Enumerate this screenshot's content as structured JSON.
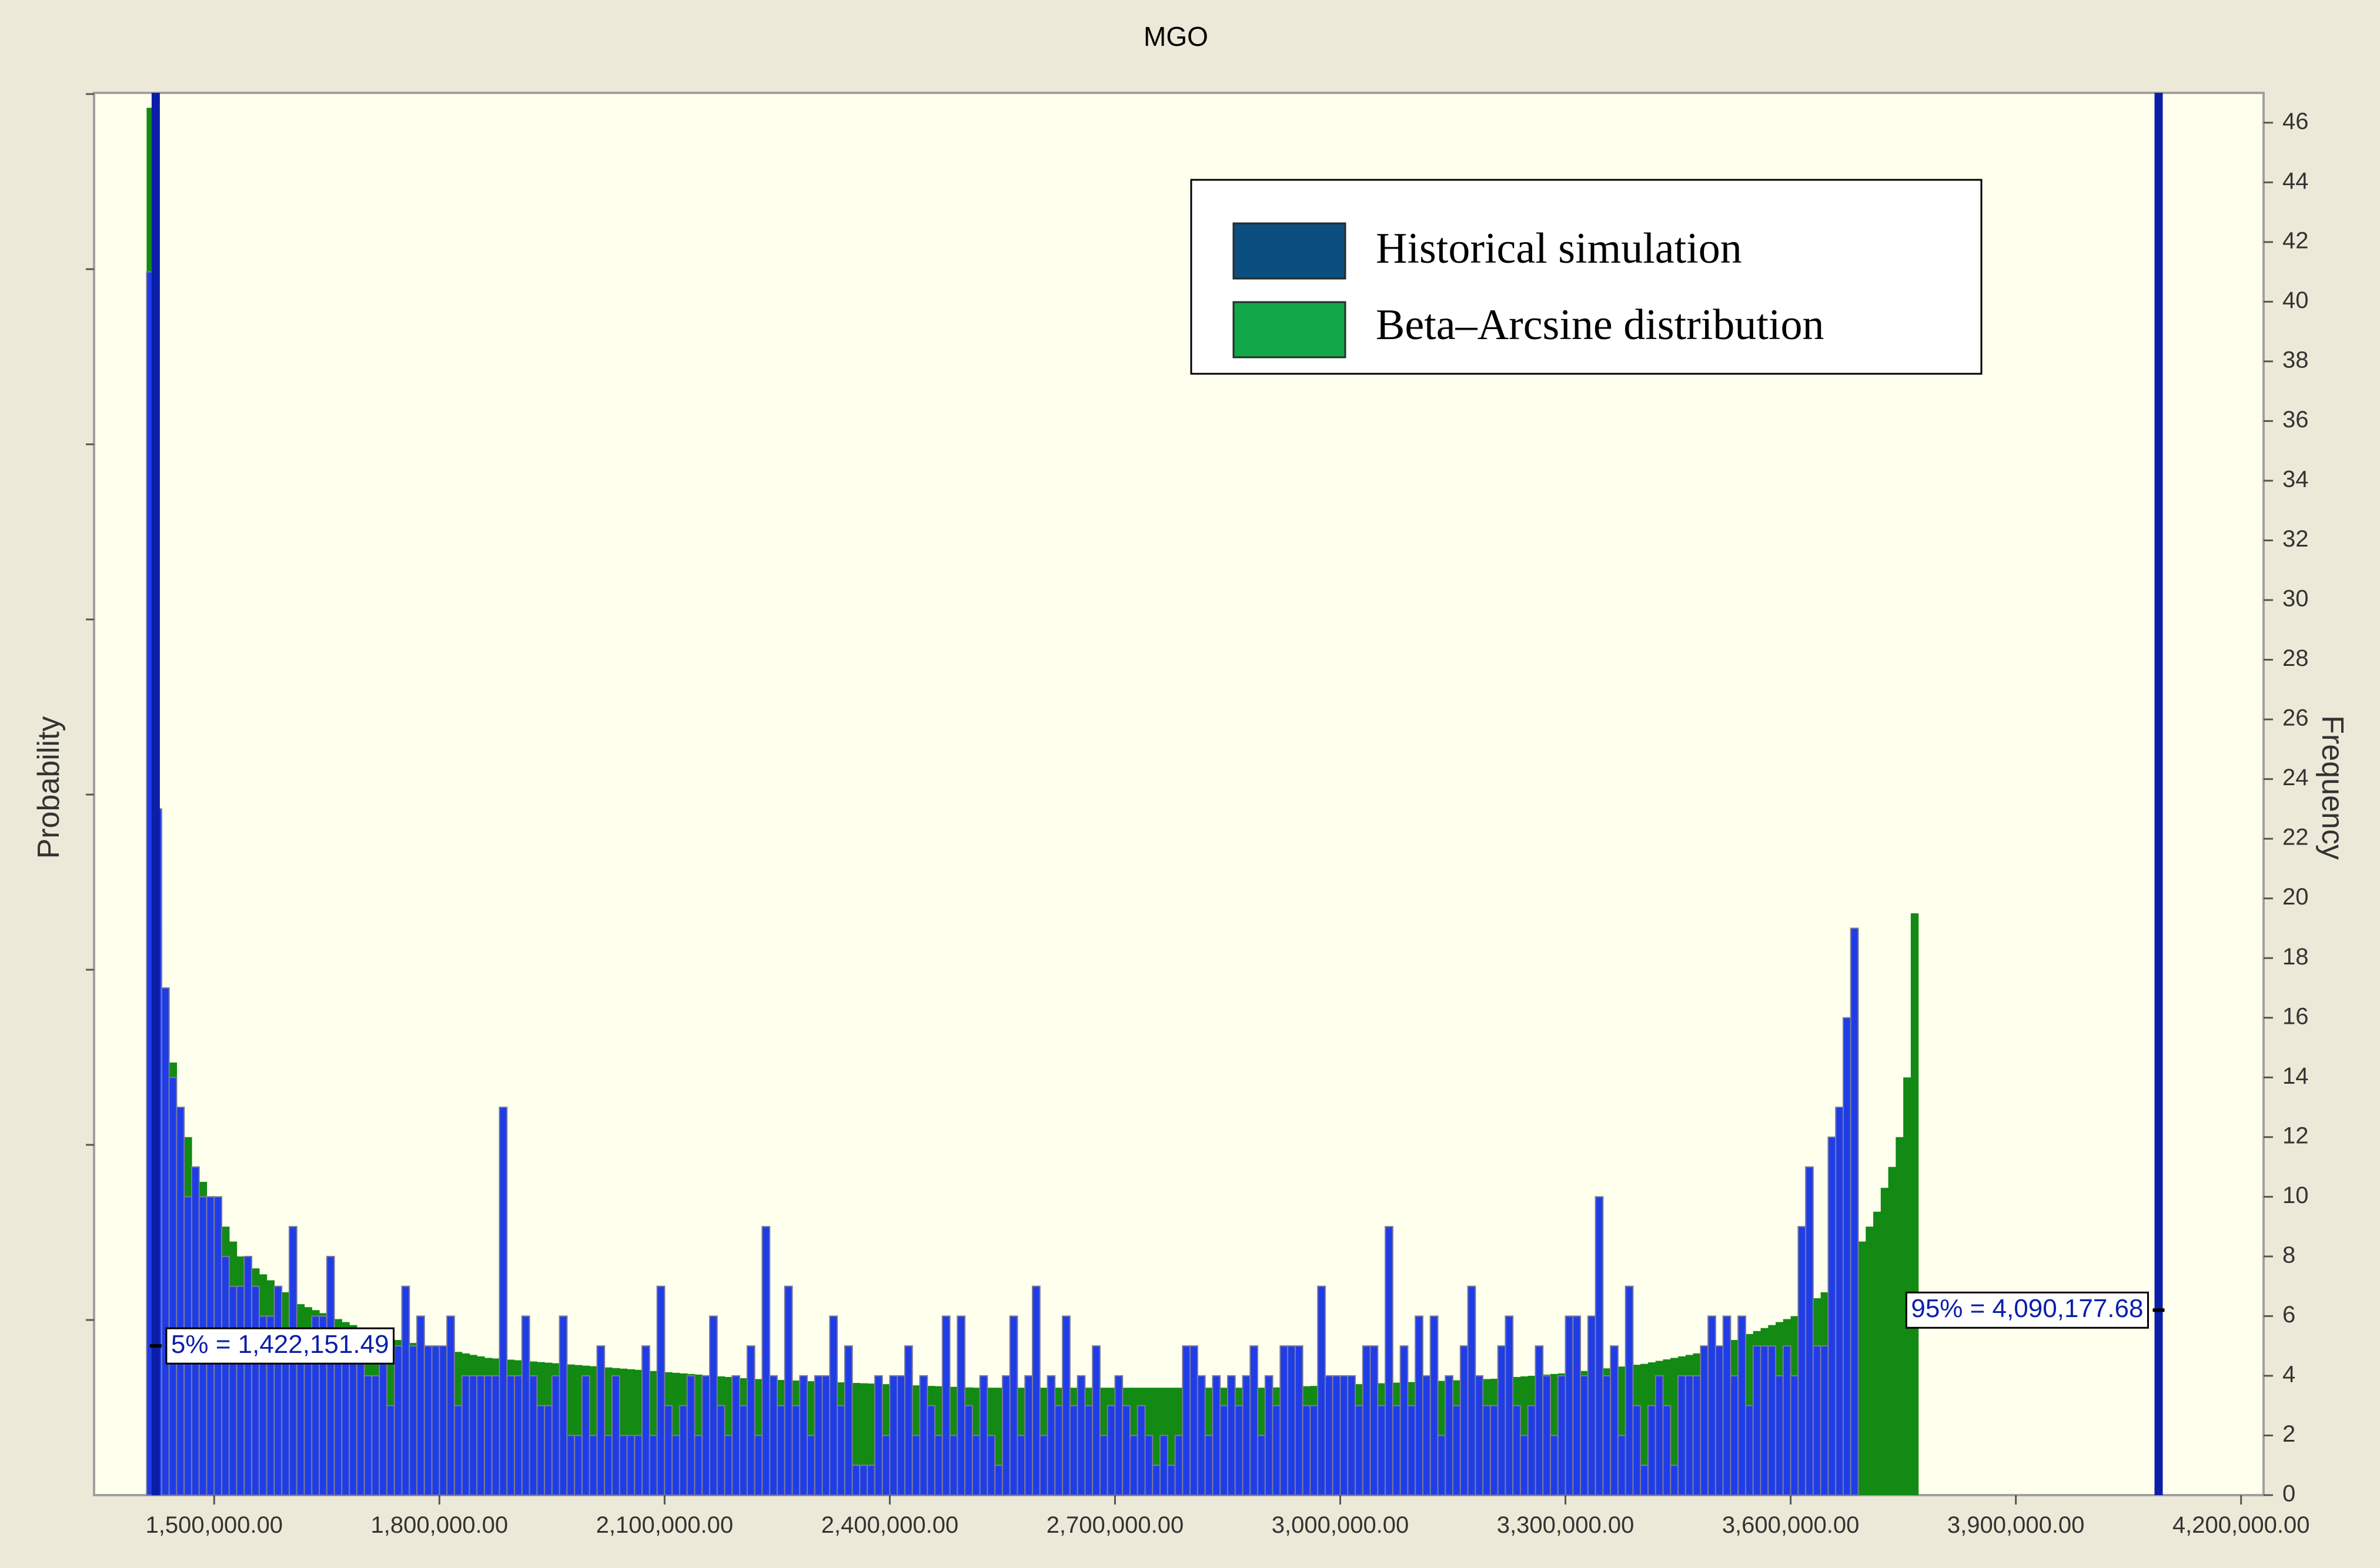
{
  "chart_data": {
    "type": "bar",
    "title": "MGO",
    "ylabel_left": "Probability",
    "ylabel_right": "Frequency",
    "xlim": [
      1340000,
      4230000
    ],
    "ylim": [
      0,
      47
    ],
    "x_ticks": [
      {
        "value": 1500000,
        "label": "1,500,000.00"
      },
      {
        "value": 1800000,
        "label": "1,800,000.00"
      },
      {
        "value": 2100000,
        "label": "2,100,000.00"
      },
      {
        "value": 2400000,
        "label": "2,400,000.00"
      },
      {
        "value": 2700000,
        "label": "2,700,000.00"
      },
      {
        "value": 3000000,
        "label": "3,000,000.00"
      },
      {
        "value": 3300000,
        "label": "3,300,000.00"
      },
      {
        "value": 3600000,
        "label": "3,600,000.00"
      },
      {
        "value": 3900000,
        "label": "3,900,000.00"
      },
      {
        "value": 4200000,
        "label": "4,200,000.00"
      }
    ],
    "y_ticks_right": [
      0,
      2,
      4,
      6,
      8,
      10,
      12,
      14,
      16,
      18,
      20,
      22,
      24,
      26,
      28,
      30,
      32,
      34,
      36,
      38,
      40,
      42,
      44,
      46
    ],
    "legend": {
      "placement": "top-right",
      "entries": [
        {
          "label": "Historical simulation",
          "color": "#0b4f80"
        },
        {
          "label": "Beta–Arcsine distribution",
          "color": "#10a848"
        }
      ]
    },
    "colors": {
      "historical_bar": "#1f3de6",
      "historical_bar_edge": "#7a7a9a",
      "beta_fill": "#138a13",
      "percentile_line": "#0a1ea8",
      "plot_background": "#ffffee",
      "frame_background": "#ece9d8"
    },
    "percentiles": [
      {
        "value": 1422151.49,
        "label": "5% = 1,422,151.49"
      },
      {
        "value": 4090177.68,
        "label": "95% = 4,090,177.68"
      }
    ],
    "bin_start": 1410000,
    "bin_width": 10000,
    "series": [
      {
        "name": "Historical simulation",
        "values": [
          41,
          23,
          17,
          14,
          13,
          10,
          11,
          10,
          10,
          10,
          8,
          7,
          7,
          8,
          7,
          6,
          6,
          7,
          5,
          9,
          5,
          5,
          6,
          6,
          8,
          5,
          5,
          5,
          5,
          4,
          4,
          5,
          3,
          5,
          7,
          5,
          6,
          5,
          5,
          5,
          6,
          3,
          4,
          4,
          4,
          4,
          4,
          13,
          4,
          4,
          6,
          4,
          3,
          3,
          4,
          6,
          2,
          2,
          4,
          2,
          5,
          2,
          4,
          2,
          2,
          2,
          5,
          2,
          7,
          3,
          2,
          3,
          4,
          2,
          4,
          6,
          3,
          2,
          4,
          3,
          5,
          2,
          9,
          4,
          3,
          7,
          3,
          4,
          2,
          4,
          4,
          6,
          3,
          5,
          1,
          1,
          1,
          4,
          2,
          4,
          4,
          5,
          2,
          4,
          3,
          2,
          6,
          2,
          6,
          3,
          2,
          4,
          2,
          1,
          4,
          6,
          2,
          4,
          7,
          2,
          4,
          3,
          6,
          3,
          4,
          3,
          5,
          2,
          3,
          4,
          3,
          2,
          3,
          2,
          1,
          2,
          1,
          2,
          5,
          5,
          4,
          2,
          4,
          3,
          4,
          3,
          4,
          5,
          2,
          4,
          3,
          5,
          5,
          5,
          3,
          3,
          7,
          4,
          4,
          4,
          4,
          3,
          5,
          5,
          3,
          9,
          3,
          5,
          3,
          6,
          4,
          6,
          2,
          4,
          3,
          5,
          7,
          4,
          3,
          3,
          5,
          6,
          3,
          2,
          3,
          5,
          4,
          2,
          4,
          6,
          6,
          4,
          6,
          10,
          4,
          5,
          2,
          7,
          3,
          1,
          3,
          4,
          3,
          1,
          4,
          4,
          4,
          5,
          6,
          5,
          6,
          4,
          6,
          3,
          5,
          5,
          5,
          4,
          5,
          4,
          9,
          11,
          5,
          5,
          12,
          13,
          16,
          19
        ]
      },
      {
        "name": "Beta–Arcsine distribution",
        "values": [
          46.5,
          19,
          16,
          14.5,
          13,
          12,
          11,
          10.5,
          10,
          9.5,
          9,
          8.5,
          8,
          7.8,
          7.6,
          7.4,
          7.2,
          7,
          6.8,
          6.6,
          6.4,
          6.3,
          6.2,
          6.1,
          6,
          5.9,
          5.8,
          5.7,
          5.6,
          5.5,
          5.4,
          5.3,
          5.25,
          5.2,
          5.15,
          5.1,
          5.05,
          5,
          4.95,
          4.9,
          4.85,
          4.8,
          4.75,
          4.7,
          4.65,
          4.6,
          4.58,
          4.56,
          4.54,
          4.52,
          4.5,
          4.48,
          4.46,
          4.44,
          4.42,
          4.4,
          4.38,
          4.36,
          4.34,
          4.32,
          4.3,
          4.28,
          4.26,
          4.24,
          4.22,
          4.2,
          4.18,
          4.16,
          4.14,
          4.12,
          4.1,
          4.08,
          4.06,
          4.04,
          4.02,
          4,
          3.98,
          3.96,
          3.94,
          3.92,
          3.9,
          3.89,
          3.88,
          3.87,
          3.86,
          3.85,
          3.84,
          3.83,
          3.82,
          3.81,
          3.8,
          3.79,
          3.78,
          3.77,
          3.76,
          3.75,
          3.74,
          3.73,
          3.72,
          3.71,
          3.7,
          3.69,
          3.68,
          3.67,
          3.66,
          3.65,
          3.64,
          3.63,
          3.62,
          3.61,
          3.6,
          3.6,
          3.6,
          3.6,
          3.6,
          3.6,
          3.6,
          3.6,
          3.6,
          3.6,
          3.6,
          3.6,
          3.6,
          3.6,
          3.6,
          3.6,
          3.6,
          3.6,
          3.6,
          3.6,
          3.6,
          3.6,
          3.6,
          3.6,
          3.6,
          3.6,
          3.6,
          3.6,
          3.6,
          3.6,
          3.6,
          3.6,
          3.6,
          3.6,
          3.6,
          3.6,
          3.6,
          3.6,
          3.6,
          3.6,
          3.61,
          3.62,
          3.63,
          3.64,
          3.65,
          3.66,
          3.67,
          3.68,
          3.69,
          3.7,
          3.71,
          3.72,
          3.73,
          3.74,
          3.75,
          3.76,
          3.77,
          3.78,
          3.79,
          3.8,
          3.81,
          3.82,
          3.83,
          3.84,
          3.85,
          3.86,
          3.87,
          3.88,
          3.89,
          3.9,
          3.92,
          3.94,
          3.96,
          3.98,
          4,
          4.02,
          4.04,
          4.06,
          4.08,
          4.1,
          4.13,
          4.16,
          4.19,
          4.22,
          4.25,
          4.28,
          4.31,
          4.34,
          4.37,
          4.4,
          4.45,
          4.5,
          4.55,
          4.6,
          4.65,
          4.7,
          4.75,
          4.8,
          4.9,
          5,
          5.1,
          5.2,
          5.3,
          5.4,
          5.5,
          5.6,
          5.7,
          5.8,
          5.9,
          6,
          6.2,
          6.4,
          6.6,
          6.8,
          7,
          7.3,
          7.6,
          8,
          8.5,
          9,
          9.5,
          10.3,
          11,
          12,
          14,
          19.5
        ]
      }
    ]
  }
}
